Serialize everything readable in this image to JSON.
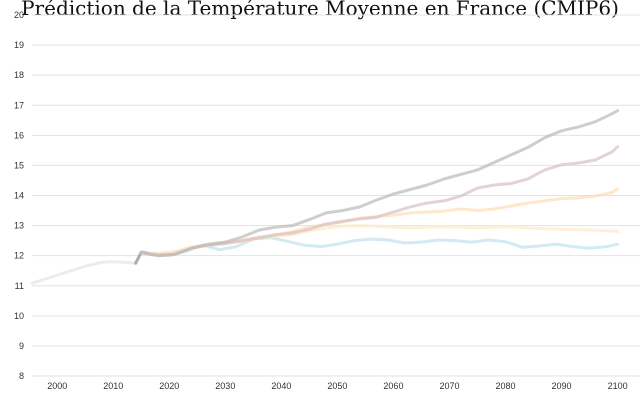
{
  "chart_data": {
    "type": "line",
    "title": "Prédiction de la Température Moyenne en France (CMIP6)",
    "xlabel": "",
    "ylabel": "",
    "xlim": [
      1995.5,
      2104
    ],
    "ylim": [
      8,
      20
    ],
    "x_ticks": [
      2000,
      2010,
      2020,
      2030,
      2040,
      2050,
      2060,
      2070,
      2080,
      2090,
      2100
    ],
    "y_ticks": [
      8,
      9,
      10,
      11,
      12,
      13,
      14,
      15,
      16,
      17,
      18,
      19,
      20
    ],
    "grid": "horizontal",
    "series": [
      {
        "color": "#d9d9d9",
        "opacity": 0.5,
        "x": [
          1995.5,
          2000,
          2005,
          2008,
          2010,
          2012,
          2014
        ],
        "values": [
          11.08,
          11.35,
          11.65,
          11.78,
          11.8,
          11.78,
          11.75
        ]
      },
      {
        "color": "#9e9e9e",
        "opacity": 0.85,
        "x": [
          2014,
          2015,
          2016
        ],
        "values": [
          11.75,
          12.12,
          12.1
        ]
      },
      {
        "color": "#add8e6",
        "opacity": 0.55,
        "x": [
          2015,
          2018,
          2020,
          2023,
          2026,
          2029,
          2032,
          2035,
          2038,
          2041,
          2044,
          2047,
          2050,
          2053,
          2056,
          2059,
          2062,
          2065,
          2068,
          2071,
          2074,
          2077,
          2080,
          2083,
          2086,
          2089,
          2092,
          2095,
          2098,
          2100
        ],
        "values": [
          12.1,
          12.02,
          12.0,
          12.15,
          12.35,
          12.2,
          12.3,
          12.55,
          12.6,
          12.48,
          12.35,
          12.3,
          12.38,
          12.5,
          12.55,
          12.52,
          12.42,
          12.45,
          12.52,
          12.5,
          12.45,
          12.52,
          12.46,
          12.28,
          12.32,
          12.38,
          12.3,
          12.25,
          12.3,
          12.38
        ]
      },
      {
        "color": "#fdebc8",
        "opacity": 0.75,
        "x": [
          2015,
          2018,
          2021,
          2024,
          2027,
          2030,
          2033,
          2036,
          2039,
          2042,
          2045,
          2048,
          2051,
          2054,
          2057,
          2060,
          2063,
          2066,
          2069,
          2072,
          2075,
          2078,
          2081,
          2084,
          2087,
          2090,
          2093,
          2096,
          2099,
          2100
        ],
        "values": [
          12.1,
          12.08,
          12.15,
          12.3,
          12.38,
          12.45,
          12.5,
          12.62,
          12.65,
          12.7,
          12.82,
          12.92,
          12.98,
          13.0,
          12.98,
          12.95,
          12.92,
          12.95,
          12.96,
          12.95,
          12.92,
          12.95,
          12.96,
          12.92,
          12.9,
          12.88,
          12.86,
          12.85,
          12.82,
          12.8
        ]
      },
      {
        "color": "#fcd9a6",
        "opacity": 0.6,
        "x": [
          2015,
          2018,
          2021,
          2024,
          2027,
          2030,
          2033,
          2036,
          2039,
          2042,
          2045,
          2048,
          2051,
          2054,
          2057,
          2060,
          2063,
          2066,
          2069,
          2072,
          2075,
          2078,
          2081,
          2084,
          2087,
          2090,
          2093,
          2096,
          2099,
          2100
        ],
        "values": [
          12.1,
          12.05,
          12.1,
          12.25,
          12.35,
          12.42,
          12.48,
          12.58,
          12.68,
          12.8,
          12.95,
          13.05,
          13.12,
          13.25,
          13.3,
          13.35,
          13.42,
          13.45,
          13.48,
          13.55,
          13.5,
          13.55,
          13.65,
          13.75,
          13.82,
          13.9,
          13.92,
          13.98,
          14.1,
          14.22
        ]
      },
      {
        "color": "#d8c0c4",
        "opacity": 0.7,
        "x": [
          2015,
          2018,
          2021,
          2024,
          2027,
          2030,
          2033,
          2036,
          2039,
          2042,
          2045,
          2048,
          2051,
          2054,
          2057,
          2060,
          2063,
          2066,
          2069,
          2072,
          2075,
          2078,
          2081,
          2084,
          2087,
          2090,
          2093,
          2096,
          2099,
          2100
        ],
        "values": [
          12.1,
          12.02,
          12.05,
          12.25,
          12.35,
          12.4,
          12.5,
          12.6,
          12.7,
          12.75,
          12.88,
          13.05,
          13.15,
          13.22,
          13.28,
          13.45,
          13.62,
          13.75,
          13.82,
          13.98,
          14.25,
          14.35,
          14.4,
          14.55,
          14.85,
          15.02,
          15.08,
          15.18,
          15.45,
          15.62
        ]
      },
      {
        "color": "#b9b9b9",
        "opacity": 0.7,
        "x": [
          2015,
          2018,
          2021,
          2024,
          2027,
          2030,
          2033,
          2036,
          2039,
          2042,
          2045,
          2048,
          2051,
          2054,
          2057,
          2060,
          2063,
          2066,
          2069,
          2072,
          2075,
          2078,
          2081,
          2084,
          2087,
          2090,
          2093,
          2096,
          2099,
          2100
        ],
        "values": [
          12.1,
          12.0,
          12.05,
          12.25,
          12.38,
          12.45,
          12.62,
          12.85,
          12.95,
          13.0,
          13.2,
          13.42,
          13.5,
          13.62,
          13.85,
          14.05,
          14.2,
          14.35,
          14.55,
          14.7,
          14.85,
          15.1,
          15.35,
          15.6,
          15.92,
          16.15,
          16.28,
          16.45,
          16.72,
          16.82
        ]
      }
    ]
  }
}
